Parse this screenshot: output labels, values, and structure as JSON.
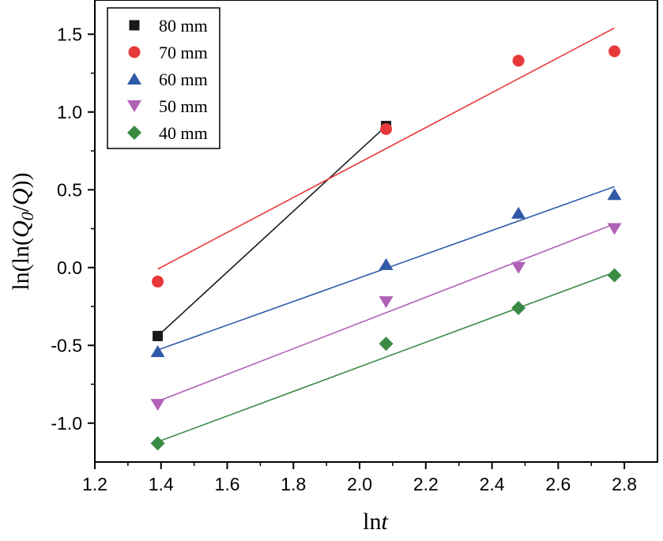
{
  "chart_data": {
    "type": "scatter",
    "title": "",
    "xlabel": {
      "base": "ln",
      "italic": "t"
    },
    "ylabel": {
      "prefix": "ln(ln(",
      "q0": "Q",
      "sub0": "0",
      "slash": "/",
      "q": "Q",
      "suffix": "))"
    },
    "xlim": [
      1.2,
      2.9
    ],
    "ylim": [
      -1.25,
      1.72
    ],
    "xticks": [
      "1.2",
      "1.4",
      "1.6",
      "1.8",
      "2.0",
      "2.2",
      "2.4",
      "2.6",
      "2.8"
    ],
    "yticks": [
      "-1.0",
      "-0.5",
      "0.0",
      "0.5",
      "1.0",
      "1.5"
    ],
    "grid": false,
    "legend_position": "top-left",
    "series": [
      {
        "name": "80 mm",
        "marker": "square",
        "color": "#1a1a1a",
        "x": [
          1.39,
          2.08
        ],
        "y": [
          -0.44,
          0.91
        ],
        "fit": {
          "x": [
            1.39,
            2.08
          ],
          "y": [
            -0.44,
            0.91
          ]
        }
      },
      {
        "name": "70 mm",
        "marker": "circle",
        "color": "#e8393a",
        "x": [
          1.39,
          2.08,
          2.48,
          2.77
        ],
        "y": [
          -0.09,
          0.89,
          1.33,
          1.39
        ],
        "fit": {
          "x": [
            1.39,
            2.77
          ],
          "y": [
            -0.01,
            1.54
          ]
        }
      },
      {
        "name": "60 mm",
        "marker": "triangle-up",
        "color": "#2f5aa8",
        "x": [
          1.39,
          2.08,
          2.48,
          2.77
        ],
        "y": [
          -0.54,
          0.02,
          0.35,
          0.47
        ],
        "fit": {
          "x": [
            1.39,
            2.77
          ],
          "y": [
            -0.53,
            0.52
          ]
        }
      },
      {
        "name": "50 mm",
        "marker": "triangle-down",
        "color": "#b062b6",
        "x": [
          1.39,
          2.08,
          2.48,
          2.77
        ],
        "y": [
          -0.88,
          -0.22,
          0.0,
          0.25
        ],
        "fit": {
          "x": [
            1.39,
            2.77
          ],
          "y": [
            -0.86,
            0.28
          ]
        }
      },
      {
        "name": "40 mm",
        "marker": "diamond",
        "color": "#3a8a44",
        "x": [
          1.39,
          2.08,
          2.48,
          2.77
        ],
        "y": [
          -1.13,
          -0.49,
          -0.26,
          -0.05
        ],
        "fit": {
          "x": [
            1.39,
            2.77
          ],
          "y": [
            -1.12,
            -0.03
          ]
        }
      }
    ]
  }
}
